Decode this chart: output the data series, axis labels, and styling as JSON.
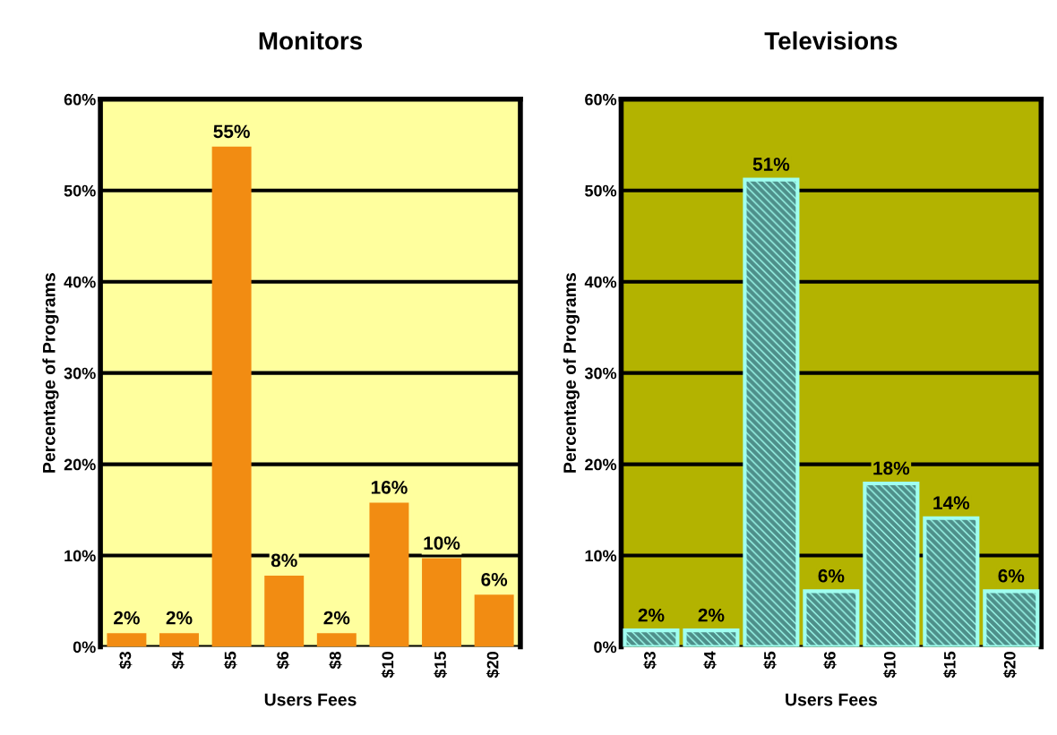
{
  "chart_data": [
    {
      "type": "bar",
      "title": "Monitors",
      "xlabel": "Users Fees",
      "ylabel": "Percentage of Programs",
      "categories": [
        "$3",
        "$4",
        "$5",
        "$6",
        "$8",
        "$10",
        "$15",
        "$20"
      ],
      "values": [
        1.5,
        1.5,
        54.8,
        7.8,
        1.5,
        15.8,
        9.7,
        5.7
      ],
      "value_labels": [
        "2%",
        "2%",
        "55%",
        "8%",
        "2%",
        "16%",
        "10%",
        "6%"
      ],
      "color": "#f28c12",
      "ylim": [
        0,
        60
      ],
      "yticks": [
        {
          "value": 0,
          "label": "0%"
        },
        {
          "value": 10,
          "label": "10%"
        },
        {
          "value": 20,
          "label": "20%"
        },
        {
          "value": 30,
          "label": "30%"
        },
        {
          "value": 40,
          "label": "40%"
        },
        {
          "value": 50,
          "label": "50%"
        },
        {
          "value": 60,
          "label": "60%"
        }
      ],
      "grid": "y"
    },
    {
      "type": "bar",
      "title": "Televisions",
      "xlabel": "Users Fees",
      "ylabel": "Percentage of Programs",
      "categories": [
        "$3",
        "$4",
        "$5",
        "$6",
        "$10",
        "$15",
        "$20"
      ],
      "values": [
        1.8,
        1.8,
        51.2,
        6.1,
        17.9,
        14.1,
        6.1
      ],
      "value_labels": [
        "2%",
        "2%",
        "51%",
        "6%",
        "18%",
        "14%",
        "6%"
      ],
      "color": "#a0fff0",
      "ylim": [
        0,
        60
      ],
      "yticks": [
        {
          "value": 0,
          "label": "0%"
        },
        {
          "value": 10,
          "label": "10%"
        },
        {
          "value": 20,
          "label": "20%"
        },
        {
          "value": 30,
          "label": "30%"
        },
        {
          "value": 40,
          "label": "40%"
        },
        {
          "value": 50,
          "label": "50%"
        },
        {
          "value": 60,
          "label": "60%"
        }
      ],
      "grid": "y"
    }
  ]
}
